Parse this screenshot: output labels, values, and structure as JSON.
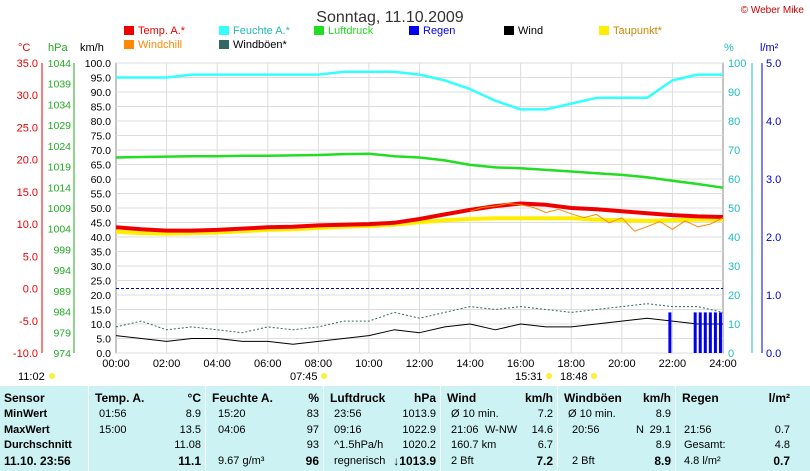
{
  "title": "Sonntag, 11.10.2009",
  "copyright": "© Weber Mike",
  "colors": {
    "temp": "#ee0000",
    "humidity": "#33ffff",
    "pressure": "#22dd22",
    "rain": "#0000ee",
    "wind": "#000000",
    "dewpoint": "#ffee00",
    "windchill": "#ff8800",
    "gust": "#336666",
    "table_bg": "#ccf2f4"
  },
  "legend": [
    {
      "label": "Temp. A.*",
      "color": "#ee0000"
    },
    {
      "label": "Feuchte A.*",
      "color": "#33ffff"
    },
    {
      "label": "Luftdruck",
      "color": "#22dd22"
    },
    {
      "label": "Regen",
      "color": "#0000ee"
    },
    {
      "label": "Wind",
      "color": "#000000"
    },
    {
      "label": "Taupunkt*",
      "color": "#ffee00"
    },
    {
      "label": "Windchill",
      "color": "#ff8800"
    },
    {
      "label": "Windböen*",
      "color": "#336666"
    }
  ],
  "axis_units": {
    "temp": "°C",
    "pressure": "hPa",
    "wind": "km/h",
    "humidity": "%",
    "rain": "l/m²"
  },
  "chart_data": {
    "type": "line",
    "x_range": [
      "00:00",
      "24:00"
    ],
    "x_ticks": [
      "00:00",
      "02:00",
      "04:00",
      "06:00",
      "08:00",
      "10:00",
      "12:00",
      "14:00",
      "16:00",
      "18:00",
      "20:00",
      "22:00",
      "24:00"
    ],
    "axes": {
      "temp": {
        "unit": "°C",
        "range": [
          -10,
          35
        ],
        "ticks": [
          "35.0",
          "30.0",
          "25.0",
          "20.0",
          "15.0",
          "10.0",
          "5.0",
          "0.0",
          "-5.0",
          "-10.0"
        ]
      },
      "pressure": {
        "unit": "hPa",
        "range": [
          974,
          1044
        ],
        "ticks": [
          "1044",
          "1039",
          "1034",
          "1029",
          "1024",
          "1019",
          "1014",
          "1009",
          "1004",
          "999",
          "994",
          "989",
          "984",
          "979",
          "974"
        ]
      },
      "wind": {
        "unit": "km/h",
        "range": [
          0,
          100
        ],
        "ticks": [
          "100.0",
          "95.0",
          "90.0",
          "85.0",
          "80.0",
          "75.0",
          "70.0",
          "65.0",
          "60.0",
          "55.0",
          "50.0",
          "45.0",
          "40.0",
          "35.0",
          "30.0",
          "25.0",
          "20.0",
          "15.0",
          "10.0",
          "5.0",
          "0.0"
        ]
      },
      "humidity": {
        "unit": "%",
        "range": [
          0,
          100
        ],
        "ticks": [
          "100",
          "90",
          "80",
          "70",
          "60",
          "50",
          "40",
          "30",
          "20",
          "10",
          "0"
        ]
      },
      "rain": {
        "unit": "l/m²",
        "range": [
          0,
          5
        ],
        "ticks": [
          "5.0",
          "4.0",
          "3.0",
          "2.0",
          "1.0",
          "0.0"
        ]
      }
    },
    "series": [
      {
        "name": "Temp. A.*",
        "axis": "temp",
        "hours": [
          0,
          1,
          2,
          3,
          4,
          5,
          6,
          7,
          8,
          9,
          10,
          11,
          12,
          13,
          14,
          15,
          16,
          17,
          18,
          19,
          20,
          21,
          22,
          23,
          24
        ],
        "values": [
          9.5,
          9.2,
          9.0,
          9.0,
          9.1,
          9.3,
          9.5,
          9.6,
          9.8,
          9.9,
          10.0,
          10.2,
          10.8,
          11.5,
          12.2,
          12.8,
          13.2,
          13.0,
          12.5,
          12.3,
          12.0,
          11.7,
          11.4,
          11.2,
          11.1
        ]
      },
      {
        "name": "Feuchte A.*",
        "axis": "humidity",
        "hours": [
          0,
          1,
          2,
          3,
          4,
          5,
          6,
          7,
          8,
          9,
          10,
          11,
          12,
          13,
          14,
          15,
          16,
          17,
          18,
          19,
          20,
          21,
          22,
          23,
          24
        ],
        "values": [
          95,
          95,
          95,
          96,
          96,
          96,
          96,
          96,
          96,
          97,
          97,
          97,
          96,
          94,
          91,
          87,
          84,
          84,
          86,
          88,
          88,
          88,
          94,
          96,
          96
        ]
      },
      {
        "name": "Luftdruck",
        "axis": "pressure",
        "hours": [
          0,
          1,
          2,
          3,
          4,
          5,
          6,
          7,
          8,
          9,
          10,
          11,
          12,
          13,
          14,
          15,
          16,
          17,
          18,
          19,
          20,
          21,
          22,
          23,
          24
        ],
        "values": [
          1021.2,
          1021.3,
          1021.4,
          1021.5,
          1021.5,
          1021.6,
          1021.6,
          1021.7,
          1021.8,
          1022.0,
          1022.1,
          1021.5,
          1021.2,
          1020.5,
          1019.4,
          1018.8,
          1018.6,
          1018.2,
          1017.8,
          1017.4,
          1017.0,
          1016.4,
          1015.6,
          1014.8,
          1013.9
        ]
      },
      {
        "name": "Taupunkt*",
        "axis": "temp",
        "hours": [
          0,
          1,
          2,
          3,
          4,
          5,
          6,
          7,
          8,
          9,
          10,
          11,
          12,
          13,
          14,
          15,
          16,
          17,
          18,
          19,
          20,
          21,
          22,
          23,
          24
        ],
        "values": [
          8.8,
          8.6,
          8.5,
          8.6,
          8.7,
          8.9,
          9.1,
          9.2,
          9.4,
          9.6,
          9.7,
          9.9,
          10.3,
          10.6,
          10.8,
          10.9,
          10.9,
          10.9,
          10.9,
          10.7,
          10.6,
          10.5,
          10.6,
          10.7,
          10.7
        ]
      },
      {
        "name": "Windchill",
        "axis": "temp",
        "hours": [
          14,
          14.5,
          15,
          15.5,
          16,
          16.5,
          17,
          17.5,
          18,
          18.5,
          19,
          19.5,
          20,
          20.5,
          21,
          21.5,
          22,
          22.5,
          23,
          23.5,
          24
        ],
        "values": [
          12.0,
          12.6,
          12.8,
          13.2,
          13.0,
          12.6,
          11.8,
          12.3,
          11.6,
          11.0,
          11.5,
          10.2,
          11.0,
          8.9,
          9.6,
          10.4,
          9.2,
          10.5,
          9.6,
          10.0,
          11.0
        ]
      },
      {
        "name": "Wind",
        "axis": "wind",
        "hours": [
          0,
          1,
          2,
          3,
          4,
          5,
          6,
          7,
          8,
          9,
          10,
          11,
          12,
          13,
          14,
          15,
          16,
          17,
          18,
          19,
          20,
          21,
          22,
          23,
          24
        ],
        "values": [
          6,
          5,
          4,
          5,
          5,
          4,
          4,
          3,
          4,
          5,
          6,
          8,
          7,
          9,
          10,
          8,
          10,
          9,
          9,
          10,
          11,
          12,
          11,
          10,
          10
        ]
      },
      {
        "name": "Windböen*",
        "axis": "wind",
        "hours": [
          0,
          1,
          2,
          3,
          4,
          5,
          6,
          7,
          8,
          9,
          10,
          11,
          12,
          13,
          14,
          15,
          16,
          17,
          18,
          19,
          20,
          21,
          22,
          23,
          24
        ],
        "values": [
          9,
          11,
          8,
          9,
          8,
          7,
          9,
          8,
          9,
          11,
          11,
          14,
          12,
          14,
          16,
          15,
          16,
          15,
          14,
          15,
          16,
          17,
          16,
          16,
          14
        ]
      },
      {
        "name": "Regen",
        "axis": "rain",
        "type": "bar",
        "hours": [
          21.9,
          22.9,
          23.1,
          23.3,
          23.5,
          23.7,
          23.9
        ],
        "values": [
          0.7,
          0.7,
          0.7,
          0.7,
          0.7,
          0.7,
          0.7
        ]
      }
    ],
    "reference_lines": [
      {
        "axis": "temp",
        "value": 0.0
      }
    ],
    "markers": [
      {
        "time": "11:02",
        "label": "11:02"
      },
      {
        "time": "07:45",
        "label": "07:45"
      },
      {
        "time": "15:31",
        "label": "15:31"
      },
      {
        "time": "18:48",
        "label": "18:48"
      }
    ],
    "grid": true,
    "legend_position": "top"
  },
  "table": {
    "labels": {
      "col": "Sensor",
      "min": "MinWert",
      "max": "MaxWert",
      "avg": "Durchschnitt",
      "cur": "11.10. 23:56"
    },
    "temp": {
      "title": "Temp. A.",
      "unit": "°C",
      "min_time": "01:56",
      "min": "8.9",
      "max_time": "15:00",
      "max": "13.5",
      "avg": "11.08",
      "cur": "11.1"
    },
    "humidity": {
      "title": "Feuchte A.",
      "unit": "%",
      "min_time": "15:20",
      "min": "83",
      "max_time": "04:06",
      "max": "97",
      "avg": "93",
      "cur_extra": "9.67 g/m³",
      "cur": "96"
    },
    "pressure": {
      "title": "Luftdruck",
      "unit": "hPa",
      "min_time": "23:56",
      "min": "1013.9",
      "max_time": "09:16",
      "max": "1022.9",
      "avg_label": "^1.5hPa/h",
      "avg": "1020.2",
      "cur_label": "regnerisch",
      "cur": "↓1013.9"
    },
    "wind": {
      "title": "Wind",
      "unit": "km/h",
      "min_label": "Ø 10 min.",
      "min": "7.2",
      "max_time": "21:06",
      "max_dir": "W-NW",
      "max": "14.6",
      "avg_label": "160.7 km",
      "avg": "6.7",
      "cur_label": "2 Bft",
      "cur": "7.2"
    },
    "gust": {
      "title": "Windböen",
      "unit": "km/h",
      "min_label": "Ø 10 min.",
      "min": "8.9",
      "max_time": "20:56",
      "max_dir": "N",
      "max": "29.1",
      "avg": "8.9",
      "cur_label": "2 Bft",
      "cur": "8.9"
    },
    "rain": {
      "title": "Regen",
      "unit": "l/m²",
      "max_time": "21:56",
      "max": "0.7",
      "avg_label": "Gesamt:",
      "avg": "4.8",
      "cur_label": "4.8 l/m²",
      "cur": "0.7"
    }
  }
}
